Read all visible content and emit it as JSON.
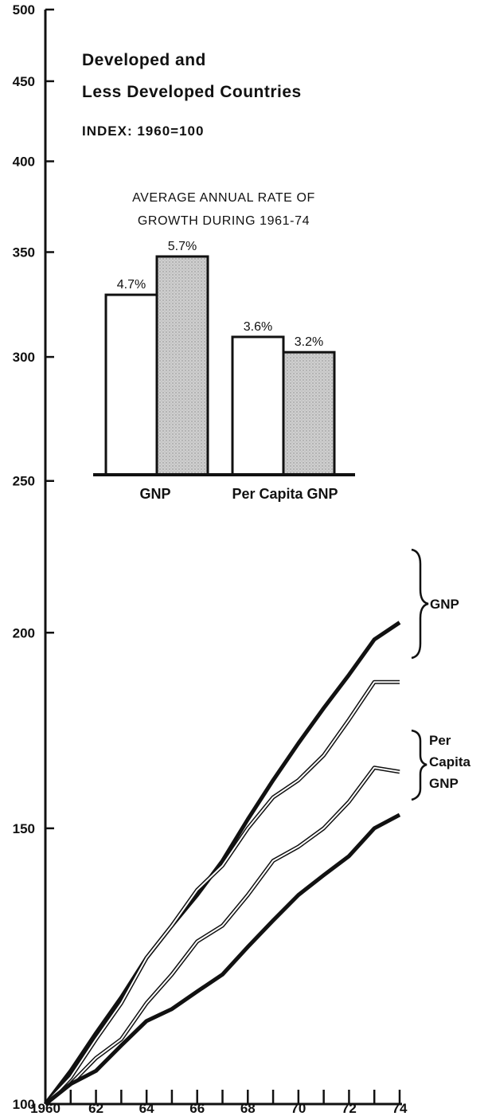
{
  "chart_data": [
    {
      "type": "line",
      "title": "Developed and",
      "subtitle_line2": "Less Developed Countries",
      "subtitle": "INDEX: 1960=100",
      "x": [
        1960,
        1961,
        1962,
        1963,
        1964,
        1965,
        1966,
        1967,
        1968,
        1969,
        1970,
        1971,
        1972,
        1973,
        1974
      ],
      "x_tick_labels": [
        "1960",
        "62",
        "64",
        "66",
        "68",
        "70",
        "72",
        "74"
      ],
      "y_tick_labels": [
        "100",
        "150",
        "200",
        "250",
        "300",
        "350",
        "400",
        "450",
        "500"
      ],
      "y_scale": "log",
      "ylim": [
        100,
        500
      ],
      "series": [
        {
          "group": "GNP",
          "style": "solid",
          "values": [
            100,
            105,
            111,
            117,
            124,
            130,
            136,
            143,
            152,
            161,
            170,
            179,
            188,
            198,
            203
          ]
        },
        {
          "group": "GNP",
          "style": "outline",
          "values": [
            100,
            104,
            110,
            116,
            124,
            130,
            137,
            142,
            150,
            157,
            161,
            167,
            176,
            186,
            186
          ]
        },
        {
          "group": "Per Capita GNP",
          "style": "outline",
          "values": [
            100,
            103,
            107,
            110,
            116,
            121,
            127,
            130,
            136,
            143,
            146,
            150,
            156,
            164,
            163
          ]
        },
        {
          "group": "Per Capita GNP",
          "style": "solid",
          "values": [
            100,
            103,
            105,
            109,
            113,
            115,
            118,
            121,
            126,
            131,
            136,
            140,
            144,
            150,
            153
          ]
        }
      ],
      "brackets": [
        {
          "label": "GNP"
        },
        {
          "label_lines": [
            "Per",
            "Capita",
            "GNP"
          ]
        }
      ]
    },
    {
      "type": "bar",
      "title_lines": [
        "AVERAGE ANNUAL RATE OF",
        "GROWTH DURING 1961-74"
      ],
      "categories": [
        "GNP",
        "Per Capita GNP"
      ],
      "series": [
        {
          "style": "white",
          "values": [
            4.7,
            3.6
          ],
          "labels": [
            "4.7%",
            "3.6%"
          ]
        },
        {
          "style": "stippled",
          "values": [
            5.7,
            3.2
          ],
          "labels": [
            "5.7%",
            "3.2%"
          ]
        }
      ],
      "ylim": [
        0,
        6
      ]
    }
  ]
}
